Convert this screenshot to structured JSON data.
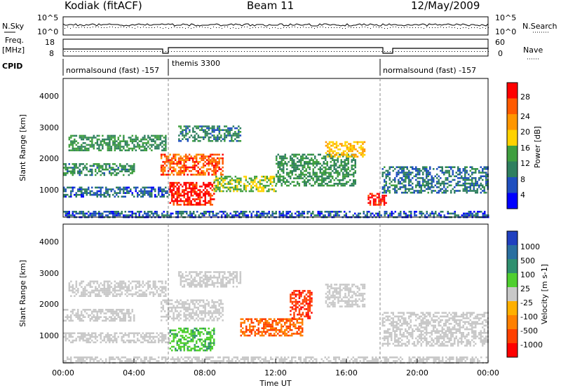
{
  "header": {
    "station": "Kodiak (fitACF)",
    "beam": "Beam 11",
    "date": "12/May/2009"
  },
  "side_labels": {
    "nsky": "N.Sky",
    "nsearch": "N.Search",
    "freq": "Freq.",
    "freq_unit": "[MHz]",
    "nave": "Nave",
    "cpid": "CPID"
  },
  "noise_panel": {
    "left_ticks": [
      "10^5",
      "10^0"
    ],
    "right_ticks": [
      "10^5",
      "10^0"
    ]
  },
  "freq_panel": {
    "left_ticks": [
      "18",
      "8"
    ],
    "right_ticks": [
      "60",
      "0"
    ]
  },
  "cpid_segments": [
    {
      "label": "normalsound (fast) -157",
      "start_hour": 0
    },
    {
      "label": "themis 3300",
      "start_hour": 6
    },
    {
      "label": "normalsound (fast) -157",
      "start_hour": 18
    }
  ],
  "power_colorbar": {
    "label": "Power [dB]",
    "ticks": [
      "28",
      "24",
      "20",
      "16",
      "12",
      "8",
      "4"
    ],
    "colors": [
      "#ff0000",
      "#ff5a00",
      "#ff9600",
      "#ffd200",
      "#3f9f3f",
      "#2f7f5f",
      "#1f4fbf",
      "#0000ff"
    ]
  },
  "velocity_colorbar": {
    "label": "Velocity [m s-1]",
    "ticks": [
      "1000",
      "500",
      "100",
      "25",
      "-25",
      "-100",
      "-500",
      "-1000"
    ],
    "colors": [
      "#2040c0",
      "#2a6fa0",
      "#2f8f6f",
      "#4fcf2f",
      "#c8c8c8",
      "#ffb000",
      "#ff8000",
      "#ff4000",
      "#ff0000"
    ]
  },
  "chart_data": [
    {
      "type": "heatmap",
      "quantity": "Power",
      "ylabel": "Slant Range [km]",
      "xlabel": "Time UT",
      "x_ticks": [
        "00:00",
        "04:00",
        "08:00",
        "12:00",
        "16:00",
        "20:00",
        "00:00"
      ],
      "y_ticks": [
        "1000",
        "2000",
        "3000",
        "4000"
      ],
      "xlim_hours": [
        0,
        24
      ],
      "ylim_km": [
        180,
        4600
      ],
      "echo_regions": [
        {
          "t0": 0.0,
          "t1": 6.0,
          "r0": 850,
          "r1": 1150,
          "value_db": 6
        },
        {
          "t0": 0.3,
          "t1": 5.8,
          "r0": 2300,
          "r1": 2800,
          "value_db": 10
        },
        {
          "t0": 0.0,
          "t1": 4.0,
          "r0": 1500,
          "r1": 1900,
          "value_db": 9
        },
        {
          "t0": 5.5,
          "t1": 9.0,
          "r0": 1550,
          "r1": 2200,
          "value_db": 24
        },
        {
          "t0": 6.0,
          "t1": 8.5,
          "r0": 600,
          "r1": 1300,
          "value_db": 28
        },
        {
          "t0": 6.5,
          "t1": 10.0,
          "r0": 2600,
          "r1": 3100,
          "value_db": 8
        },
        {
          "t0": 8.5,
          "t1": 12.0,
          "r0": 1000,
          "r1": 1500,
          "value_db": 14
        },
        {
          "t0": 12.0,
          "t1": 16.5,
          "r0": 1200,
          "r1": 2200,
          "value_db": 10
        },
        {
          "t0": 14.8,
          "t1": 17.0,
          "r0": 2100,
          "r1": 2600,
          "value_db": 18
        },
        {
          "t0": 17.2,
          "t1": 18.2,
          "r0": 550,
          "r1": 950,
          "value_db": 28
        },
        {
          "t0": 18.0,
          "t1": 24.0,
          "r0": 950,
          "r1": 1800,
          "value_db": 7
        },
        {
          "t0": 0.0,
          "t1": 24.0,
          "r0": 180,
          "r1": 380,
          "value_db": 5
        }
      ]
    },
    {
      "type": "heatmap",
      "quantity": "Velocity",
      "ylabel": "Slant Range [km]",
      "xlabel": "Time UT",
      "x_ticks": [
        "00:00",
        "04:00",
        "08:00",
        "12:00",
        "16:00",
        "20:00",
        "00:00"
      ],
      "y_ticks": [
        "1000",
        "2000",
        "3000",
        "4000"
      ],
      "xlim_hours": [
        0,
        24
      ],
      "ylim_km": [
        180,
        4600
      ],
      "echo_regions": [
        {
          "t0": 0.0,
          "t1": 6.0,
          "r0": 850,
          "r1": 1150,
          "value_ms": 0
        },
        {
          "t0": 0.3,
          "t1": 5.8,
          "r0": 2300,
          "r1": 2800,
          "value_ms": 0
        },
        {
          "t0": 0.0,
          "t1": 4.0,
          "r0": 1500,
          "r1": 1900,
          "value_ms": 0
        },
        {
          "t0": 5.5,
          "t1": 9.0,
          "r0": 1550,
          "r1": 2200,
          "value_ms": 0
        },
        {
          "t0": 6.0,
          "t1": 8.5,
          "r0": 600,
          "r1": 1300,
          "value_ms": 50
        },
        {
          "t0": 6.5,
          "t1": 10.0,
          "r0": 2600,
          "r1": 3100,
          "value_ms": 0
        },
        {
          "t0": 10.0,
          "t1": 13.5,
          "r0": 1050,
          "r1": 1600,
          "value_ms": -300
        },
        {
          "t0": 12.8,
          "t1": 14.0,
          "r0": 1600,
          "r1": 2500,
          "value_ms": -700
        },
        {
          "t0": 14.8,
          "t1": 17.0,
          "r0": 2000,
          "r1": 2700,
          "value_ms": 0
        },
        {
          "t0": 18.0,
          "t1": 24.0,
          "r0": 700,
          "r1": 1800,
          "value_ms": 0
        },
        {
          "t0": 0.0,
          "t1": 24.0,
          "r0": 180,
          "r1": 380,
          "value_ms": 0
        }
      ]
    }
  ]
}
